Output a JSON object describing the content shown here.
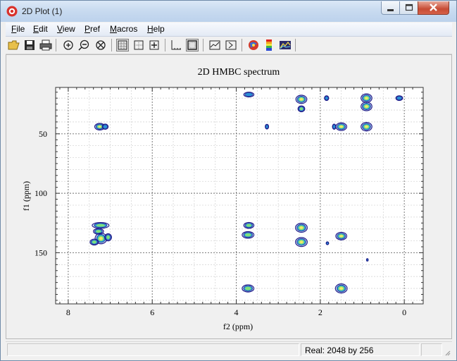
{
  "window": {
    "title": "2D Plot (1)"
  },
  "menu": [
    {
      "label": "File",
      "key": "F"
    },
    {
      "label": "Edit",
      "key": "E"
    },
    {
      "label": "View",
      "key": "V"
    },
    {
      "label": "Pref",
      "key": "P"
    },
    {
      "label": "Macros",
      "key": "M"
    },
    {
      "label": "Help",
      "key": "H"
    }
  ],
  "toolbar": {
    "buttons": [
      "open-folder-icon",
      "save-icon",
      "print-icon",
      "zoom-in-icon",
      "zoom-out-icon",
      "zoom-reset-icon",
      "grid-dotted-icon",
      "grid-box-icon",
      "crosshair-icon",
      "axes-icon",
      "frame-icon",
      "slice-icon",
      "projection-icon",
      "color-map-icon",
      "spectrum-colors-icon",
      "contour-levels-icon"
    ],
    "pressed": [
      "grid-dotted-icon",
      "frame-icon"
    ]
  },
  "status": {
    "text": "Real: 2048 by 256"
  },
  "colors": {
    "contour_outer": "#1a1a8a",
    "contour_mid": "#2a8fd6",
    "contour_inner": "#7fe07a",
    "contour_core": "#f5e86a"
  },
  "chart_data": {
    "type": "heatmap",
    "title": "2D HMBC spectrum",
    "xlabel": "f2 (ppm)",
    "ylabel": "f1 (ppm)",
    "xlim": [
      8.3,
      -0.45
    ],
    "ylim": [
      11,
      193
    ],
    "x_ticks": [
      8,
      6,
      4,
      2,
      0
    ],
    "y_ticks": [
      50,
      100,
      150
    ],
    "grid": true,
    "peaks": [
      {
        "x": 7.25,
        "y": 44,
        "w": 0.12,
        "h": 2.8,
        "level": 3
      },
      {
        "x": 7.12,
        "y": 44,
        "w": 0.07,
        "h": 2.2,
        "level": 1
      },
      {
        "x": 7.23,
        "y": 127,
        "w": 0.2,
        "h": 2.4,
        "level": 2
      },
      {
        "x": 7.28,
        "y": 132,
        "w": 0.12,
        "h": 2.4,
        "level": 2
      },
      {
        "x": 7.22,
        "y": 138,
        "w": 0.14,
        "h": 4.5,
        "level": 3
      },
      {
        "x": 7.05,
        "y": 137,
        "w": 0.08,
        "h": 3,
        "level": 2
      },
      {
        "x": 7.38,
        "y": 141,
        "w": 0.1,
        "h": 2.5,
        "level": 2
      },
      {
        "x": 3.7,
        "y": 17,
        "w": 0.12,
        "h": 2,
        "level": 1
      },
      {
        "x": 3.7,
        "y": 127,
        "w": 0.12,
        "h": 2.5,
        "level": 2
      },
      {
        "x": 3.72,
        "y": 135,
        "w": 0.14,
        "h": 2.8,
        "level": 2
      },
      {
        "x": 3.72,
        "y": 180,
        "w": 0.14,
        "h": 3,
        "level": 2
      },
      {
        "x": 3.27,
        "y": 44,
        "w": 0.04,
        "h": 2,
        "level": 1
      },
      {
        "x": 2.45,
        "y": 21,
        "w": 0.13,
        "h": 3.5,
        "level": 3
      },
      {
        "x": 2.45,
        "y": 29,
        "w": 0.08,
        "h": 2.5,
        "level": 2
      },
      {
        "x": 2.45,
        "y": 129,
        "w": 0.14,
        "h": 3.8,
        "level": 3
      },
      {
        "x": 2.45,
        "y": 141,
        "w": 0.14,
        "h": 3.8,
        "level": 3
      },
      {
        "x": 1.85,
        "y": 20,
        "w": 0.05,
        "h": 2,
        "level": 1
      },
      {
        "x": 1.83,
        "y": 142,
        "w": 0.03,
        "h": 1.2,
        "level": 1
      },
      {
        "x": 1.67,
        "y": 44,
        "w": 0.04,
        "h": 2.2,
        "level": 1
      },
      {
        "x": 1.5,
        "y": 44,
        "w": 0.13,
        "h": 3.2,
        "level": 3
      },
      {
        "x": 1.5,
        "y": 136,
        "w": 0.13,
        "h": 3.2,
        "level": 3
      },
      {
        "x": 1.5,
        "y": 180,
        "w": 0.14,
        "h": 3.8,
        "level": 3
      },
      {
        "x": 0.9,
        "y": 20,
        "w": 0.13,
        "h": 3.6,
        "level": 3
      },
      {
        "x": 0.9,
        "y": 27,
        "w": 0.13,
        "h": 3.6,
        "level": 3
      },
      {
        "x": 0.9,
        "y": 44,
        "w": 0.13,
        "h": 3.6,
        "level": 3
      },
      {
        "x": 0.88,
        "y": 156,
        "w": 0.02,
        "h": 1,
        "level": 1
      },
      {
        "x": 0.12,
        "y": 20,
        "w": 0.08,
        "h": 2,
        "level": 1
      }
    ]
  }
}
